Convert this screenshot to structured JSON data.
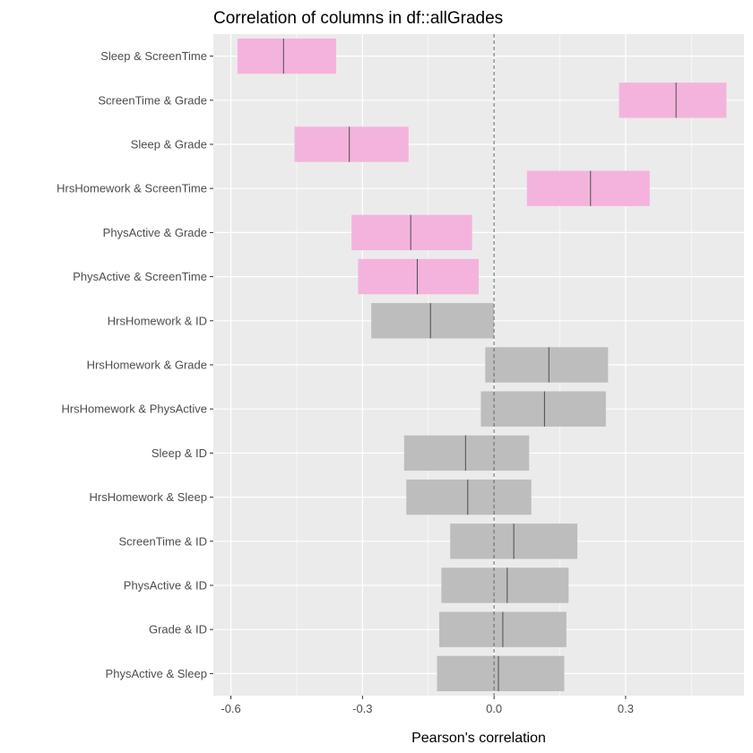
{
  "chart_data": {
    "type": "bar",
    "title": "Correlation of columns in df::allGrades",
    "xlabel": "Pearson's correlation",
    "ylabel": "",
    "xlim": [
      -0.64,
      0.57
    ],
    "x_ticks": [
      -0.6,
      -0.3,
      0.0,
      0.3
    ],
    "x_tick_labels": [
      "-0.6",
      "-0.3",
      "0.0",
      "0.3"
    ],
    "reference_line": 0.0,
    "grid": true,
    "legend": "none",
    "categories": [
      "Sleep & ScreenTime",
      "ScreenTime & Grade",
      "Sleep & Grade",
      "HrsHomework & ScreenTime",
      "PhysActive & Grade",
      "PhysActive & ScreenTime",
      "HrsHomework & ID",
      "HrsHomework & Grade",
      "HrsHomework & PhysActive",
      "Sleep & ID",
      "HrsHomework & Sleep",
      "ScreenTime & ID",
      "PhysActive & ID",
      "Grade & ID",
      "PhysActive & Sleep"
    ],
    "estimate": [
      -0.48,
      0.415,
      -0.33,
      0.22,
      -0.19,
      -0.175,
      -0.145,
      0.125,
      0.115,
      -0.065,
      -0.06,
      0.045,
      0.03,
      0.02,
      0.01
    ],
    "ci_lower": [
      -0.585,
      0.285,
      -0.455,
      0.075,
      -0.325,
      -0.31,
      -0.28,
      -0.02,
      -0.03,
      -0.205,
      -0.2,
      -0.1,
      -0.12,
      -0.125,
      -0.13
    ],
    "ci_upper": [
      -0.36,
      0.53,
      -0.195,
      0.355,
      -0.05,
      -0.035,
      0.0,
      0.26,
      0.255,
      0.08,
      0.085,
      0.19,
      0.17,
      0.165,
      0.16
    ],
    "significant": [
      true,
      true,
      true,
      true,
      true,
      true,
      false,
      false,
      false,
      false,
      false,
      false,
      false,
      false,
      false
    ],
    "colors": {
      "significant": "#f4b3dd",
      "not_significant": "#bdbdbd",
      "panel_bg": "#ebebeb",
      "grid": "#ffffff",
      "estimate_line": "#4d4d4d",
      "zero_line": "#666666"
    }
  }
}
